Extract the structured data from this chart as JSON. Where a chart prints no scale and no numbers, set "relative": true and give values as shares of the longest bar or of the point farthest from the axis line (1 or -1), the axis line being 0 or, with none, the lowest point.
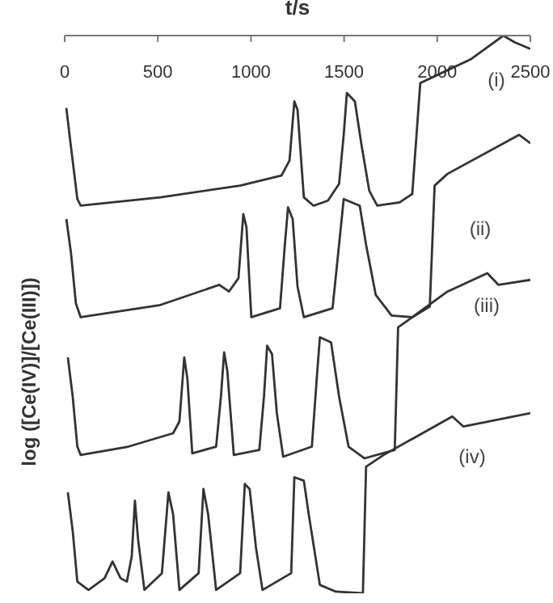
{
  "chart_data": {
    "type": "line",
    "xlabel": "t/s",
    "ylabel": "log ([Ce(IV)]/[Ce(III)])",
    "relative": true,
    "xlim": [
      0,
      2500
    ],
    "xticks": [
      0,
      500,
      1000,
      1500,
      2000,
      2500
    ],
    "series": [
      {
        "name": "(i)",
        "color": "#333333",
        "x": [
          9,
          26,
          68,
          86,
          514,
          942,
          1164,
          1207,
          1233,
          1250,
          1284,
          1336,
          1413,
          1473,
          1498,
          1515,
          1558,
          1592,
          1635,
          1678,
          1798,
          1866,
          1909,
          1986,
          2183,
          2355,
          2415,
          2500
        ],
        "values": [
          0.87,
          0.822,
          0.707,
          0.695,
          0.71,
          0.731,
          0.749,
          0.776,
          0.882,
          0.867,
          0.71,
          0.695,
          0.704,
          0.734,
          0.822,
          0.897,
          0.882,
          0.807,
          0.722,
          0.695,
          0.701,
          0.716,
          0.915,
          0.927,
          0.958,
          1,
          0.988,
          0.976
        ]
      },
      {
        "name": "(ii)",
        "color": "#333333",
        "x": [
          9,
          34,
          60,
          86,
          514,
          830,
          882,
          933,
          959,
          976,
          1002,
          1156,
          1182,
          1199,
          1224,
          1250,
          1284,
          1438,
          1473,
          1498,
          1584,
          1618,
          1670,
          1755,
          1866,
          1960,
          1986,
          2055,
          2440,
          2500
        ],
        "values": [
          0.671,
          0.61,
          0.52,
          0.495,
          0.517,
          0.553,
          0.541,
          0.565,
          0.68,
          0.656,
          0.495,
          0.511,
          0.625,
          0.692,
          0.671,
          0.55,
          0.495,
          0.511,
          0.625,
          0.707,
          0.695,
          0.625,
          0.535,
          0.498,
          0.495,
          0.514,
          0.731,
          0.752,
          0.822,
          0.807
        ]
      },
      {
        "name": "(iii)",
        "color": "#333333",
        "x": [
          17,
          43,
          68,
          86,
          342,
          582,
          616,
          642,
          659,
          685,
          813,
          839,
          856,
          873,
          908,
          1045,
          1070,
          1087,
          1113,
          1139,
          1173,
          1327,
          1353,
          1370,
          1430,
          1473,
          1524,
          1610,
          1772,
          1790,
          1841,
          2055,
          2269,
          2329,
          2500
        ],
        "values": [
          0.423,
          0.353,
          0.263,
          0.248,
          0.263,
          0.287,
          0.308,
          0.423,
          0.384,
          0.251,
          0.263,
          0.353,
          0.432,
          0.399,
          0.248,
          0.257,
          0.353,
          0.444,
          0.429,
          0.323,
          0.245,
          0.263,
          0.384,
          0.459,
          0.45,
          0.353,
          0.263,
          0.242,
          0.257,
          0.477,
          0.489,
          0.541,
          0.574,
          0.553,
          0.562
        ]
      },
      {
        "name": "(iv)",
        "color": "#333333",
        "x": [
          17,
          43,
          68,
          128,
          214,
          257,
          300,
          334,
          360,
          377,
          394,
          428,
          522,
          557,
          582,
          616,
          719,
          745,
          770,
          813,
          942,
          967,
          993,
          1027,
          1062,
          1216,
          1233,
          1284,
          1310,
          1370,
          1456,
          1601,
          1618,
          1712,
          2081,
          2141,
          2500
        ],
        "values": [
          0.181,
          0.112,
          0.021,
          0.006,
          0.027,
          0.057,
          0.027,
          0.021,
          0.066,
          0.166,
          0.097,
          0.006,
          0.036,
          0.181,
          0.142,
          0.006,
          0.036,
          0.187,
          0.142,
          0.006,
          0.036,
          0.196,
          0.187,
          0.082,
          0.006,
          0.036,
          0.208,
          0.202,
          0.142,
          0.015,
          0.003,
          0,
          0.227,
          0.248,
          0.317,
          0.299,
          0.323
        ]
      }
    ]
  }
}
